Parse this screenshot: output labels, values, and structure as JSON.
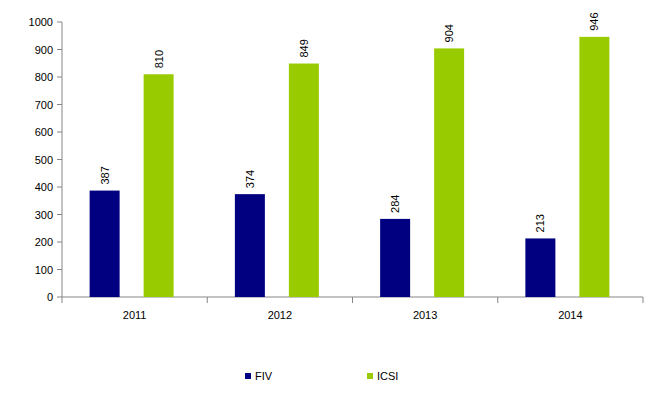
{
  "chart_data": {
    "type": "bar",
    "categories": [
      "2011",
      "2012",
      "2013",
      "2014"
    ],
    "series": [
      {
        "name": "FIV",
        "color": "#000080",
        "values": [
          387,
          374,
          284,
          213
        ]
      },
      {
        "name": "ICSI",
        "color": "#99cc00",
        "values": [
          810,
          849,
          904,
          946
        ]
      }
    ],
    "ylim": [
      0,
      1000
    ],
    "yticks": [
      0,
      100,
      200,
      300,
      400,
      500,
      600,
      700,
      800,
      900,
      1000
    ],
    "grid": false,
    "data_labels": true,
    "legend": "bottom"
  }
}
